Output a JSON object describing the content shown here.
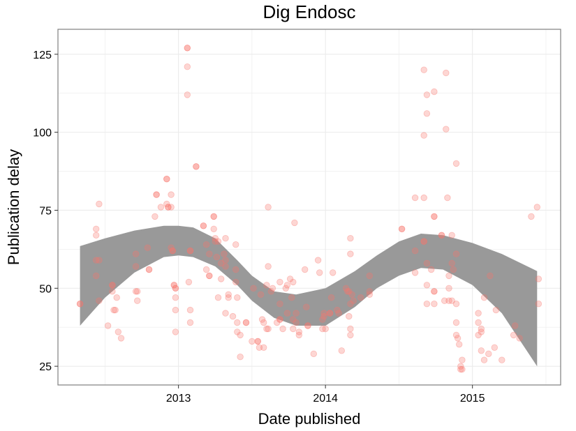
{
  "chart_data": {
    "type": "scatter",
    "title": "Dig Endosc",
    "xlabel": "Date published",
    "ylabel": "Publication delay",
    "xlim": [
      2012.18,
      2015.6
    ],
    "ylim": [
      19,
      133
    ],
    "x_ticks": [
      2013,
      2014,
      2015
    ],
    "x_tick_labels": [
      "2013",
      "2014",
      "2015"
    ],
    "x_minor_ticks": [
      2012.5,
      2013.5,
      2014.5,
      2015.5
    ],
    "y_ticks": [
      25,
      50,
      75,
      100,
      125
    ],
    "y_minor_ticks": [
      37.5,
      62.5,
      87.5,
      112.5
    ],
    "grid": true,
    "colors": {
      "points": "#f8766d",
      "band": "#999999",
      "grid": "#ebebeb",
      "border": "#7f7f7f"
    },
    "points": [
      [
        2012.33,
        45
      ],
      [
        2012.33,
        45
      ],
      [
        2012.44,
        69
      ],
      [
        2012.44,
        67
      ],
      [
        2012.44,
        59
      ],
      [
        2012.44,
        54
      ],
      [
        2012.46,
        59
      ],
      [
        2012.46,
        46
      ],
      [
        2012.46,
        77
      ],
      [
        2012.52,
        38
      ],
      [
        2012.55,
        51
      ],
      [
        2012.55,
        51
      ],
      [
        2012.55,
        49
      ],
      [
        2012.56,
        43
      ],
      [
        2012.57,
        43
      ],
      [
        2012.58,
        47
      ],
      [
        2012.59,
        36
      ],
      [
        2012.61,
        34
      ],
      [
        2012.71,
        57
      ],
      [
        2012.71,
        49
      ],
      [
        2012.72,
        46
      ],
      [
        2012.72,
        49
      ],
      [
        2012.71,
        61
      ],
      [
        2012.79,
        63
      ],
      [
        2012.8,
        56
      ],
      [
        2012.8,
        56
      ],
      [
        2012.84,
        73
      ],
      [
        2012.85,
        80
      ],
      [
        2012.85,
        80
      ],
      [
        2012.88,
        76
      ],
      [
        2012.92,
        85
      ],
      [
        2012.92,
        85
      ],
      [
        2012.92,
        77
      ],
      [
        2012.93,
        76
      ],
      [
        2012.93,
        76
      ],
      [
        2012.95,
        80
      ],
      [
        2012.95,
        76
      ],
      [
        2012.95,
        63
      ],
      [
        2012.96,
        62
      ],
      [
        2012.96,
        62
      ],
      [
        2012.97,
        51
      ],
      [
        2012.97,
        51
      ],
      [
        2012.98,
        50
      ],
      [
        2012.98,
        50
      ],
      [
        2012.98,
        47
      ],
      [
        2012.98,
        43
      ],
      [
        2012.98,
        36
      ],
      [
        2013.06,
        127
      ],
      [
        2013.06,
        127
      ],
      [
        2013.06,
        121
      ],
      [
        2013.06,
        112
      ],
      [
        2013.07,
        52
      ],
      [
        2013.08,
        62
      ],
      [
        2013.08,
        62
      ],
      [
        2013.08,
        43
      ],
      [
        2013.08,
        39
      ],
      [
        2013.12,
        89
      ],
      [
        2013.12,
        89
      ],
      [
        2013.17,
        70
      ],
      [
        2013.17,
        70
      ],
      [
        2013.19,
        64
      ],
      [
        2013.19,
        56
      ],
      [
        2013.21,
        54
      ],
      [
        2013.21,
        54
      ],
      [
        2013.21,
        61
      ],
      [
        2013.24,
        73
      ],
      [
        2013.24,
        73
      ],
      [
        2013.24,
        69
      ],
      [
        2013.25,
        66
      ],
      [
        2013.25,
        65
      ],
      [
        2013.26,
        60
      ],
      [
        2013.27,
        65
      ],
      [
        2013.27,
        47
      ],
      [
        2013.29,
        58
      ],
      [
        2013.29,
        53
      ],
      [
        2013.31,
        61
      ],
      [
        2013.32,
        57
      ],
      [
        2013.32,
        66
      ],
      [
        2013.32,
        59
      ],
      [
        2013.32,
        42
      ],
      [
        2013.34,
        48
      ],
      [
        2013.34,
        47
      ],
      [
        2013.37,
        41
      ],
      [
        2013.39,
        64
      ],
      [
        2013.39,
        56
      ],
      [
        2013.39,
        52
      ],
      [
        2013.4,
        47
      ],
      [
        2013.4,
        39
      ],
      [
        2013.4,
        36
      ],
      [
        2013.42,
        28
      ],
      [
        2013.42,
        35
      ],
      [
        2013.46,
        39
      ],
      [
        2013.46,
        39
      ],
      [
        2013.5,
        33
      ],
      [
        2013.51,
        50
      ],
      [
        2013.54,
        33
      ],
      [
        2013.54,
        33
      ],
      [
        2013.55,
        31
      ],
      [
        2013.56,
        48
      ],
      [
        2013.57,
        40
      ],
      [
        2013.58,
        39
      ],
      [
        2013.58,
        31
      ],
      [
        2013.6,
        37
      ],
      [
        2013.6,
        51
      ],
      [
        2013.61,
        76
      ],
      [
        2013.61,
        57
      ],
      [
        2013.61,
        37
      ],
      [
        2013.63,
        49
      ],
      [
        2013.64,
        50
      ],
      [
        2013.67,
        39
      ],
      [
        2013.69,
        40
      ],
      [
        2013.69,
        40
      ],
      [
        2013.69,
        52
      ],
      [
        2013.69,
        45
      ],
      [
        2013.71,
        37
      ],
      [
        2013.73,
        50
      ],
      [
        2013.74,
        42
      ],
      [
        2013.74,
        51
      ],
      [
        2013.76,
        53
      ],
      [
        2013.77,
        47
      ],
      [
        2013.78,
        40
      ],
      [
        2013.78,
        37
      ],
      [
        2013.78,
        52
      ],
      [
        2013.79,
        71
      ],
      [
        2013.8,
        42
      ],
      [
        2013.8,
        39
      ],
      [
        2013.82,
        36
      ],
      [
        2013.82,
        35
      ],
      [
        2013.86,
        56
      ],
      [
        2013.87,
        44
      ],
      [
        2013.88,
        38
      ],
      [
        2013.88,
        38
      ],
      [
        2013.92,
        29
      ],
      [
        2013.95,
        59
      ],
      [
        2013.96,
        55
      ],
      [
        2013.98,
        40
      ],
      [
        2013.98,
        37
      ],
      [
        2013.99,
        41
      ],
      [
        2013.99,
        42
      ],
      [
        2014.0,
        37
      ],
      [
        2014.03,
        42
      ],
      [
        2014.03,
        42
      ],
      [
        2014.04,
        47
      ],
      [
        2014.05,
        55
      ],
      [
        2014.08,
        43
      ],
      [
        2014.09,
        42
      ],
      [
        2014.11,
        30
      ],
      [
        2014.14,
        50
      ],
      [
        2014.15,
        49
      ],
      [
        2014.16,
        49
      ],
      [
        2014.16,
        41
      ],
      [
        2014.17,
        66
      ],
      [
        2014.17,
        61
      ],
      [
        2014.17,
        45
      ],
      [
        2014.17,
        37
      ],
      [
        2014.17,
        35
      ],
      [
        2014.18,
        48
      ],
      [
        2014.19,
        46
      ],
      [
        2014.24,
        47
      ],
      [
        2014.3,
        48
      ],
      [
        2014.3,
        54
      ],
      [
        2014.3,
        49
      ],
      [
        2014.52,
        69
      ],
      [
        2014.52,
        69
      ],
      [
        2014.61,
        79
      ],
      [
        2014.61,
        62
      ],
      [
        2014.61,
        55
      ],
      [
        2014.67,
        79
      ],
      [
        2014.67,
        65
      ],
      [
        2014.67,
        65
      ],
      [
        2014.67,
        99
      ],
      [
        2014.67,
        120
      ],
      [
        2014.69,
        112
      ],
      [
        2014.69,
        106
      ],
      [
        2014.69,
        58
      ],
      [
        2014.69,
        51
      ],
      [
        2014.69,
        45
      ],
      [
        2014.72,
        56
      ],
      [
        2014.74,
        113
      ],
      [
        2014.74,
        73
      ],
      [
        2014.74,
        73
      ],
      [
        2014.74,
        49
      ],
      [
        2014.74,
        49
      ],
      [
        2014.74,
        45
      ],
      [
        2014.79,
        67
      ],
      [
        2014.79,
        67
      ],
      [
        2014.81,
        46
      ],
      [
        2014.82,
        119
      ],
      [
        2014.82,
        101
      ],
      [
        2014.83,
        79
      ],
      [
        2014.84,
        54
      ],
      [
        2014.84,
        50
      ],
      [
        2014.84,
        46
      ],
      [
        2014.86,
        67
      ],
      [
        2014.86,
        58
      ],
      [
        2014.86,
        46
      ],
      [
        2014.87,
        56
      ],
      [
        2014.89,
        90
      ],
      [
        2014.89,
        61
      ],
      [
        2014.89,
        45
      ],
      [
        2014.89,
        39
      ],
      [
        2014.89,
        35
      ],
      [
        2014.9,
        34
      ],
      [
        2014.91,
        32
      ],
      [
        2014.92,
        25
      ],
      [
        2014.92,
        24
      ],
      [
        2014.93,
        27
      ],
      [
        2014.93,
        24
      ],
      [
        2015.04,
        42
      ],
      [
        2015.04,
        35
      ],
      [
        2015.04,
        39
      ],
      [
        2015.06,
        37
      ],
      [
        2015.06,
        36
      ],
      [
        2015.06,
        30
      ],
      [
        2015.08,
        47
      ],
      [
        2015.08,
        27
      ],
      [
        2015.11,
        29
      ],
      [
        2015.12,
        54
      ],
      [
        2015.15,
        31
      ],
      [
        2015.16,
        43
      ],
      [
        2015.2,
        27
      ],
      [
        2015.28,
        35
      ],
      [
        2015.29,
        38
      ],
      [
        2015.32,
        34
      ],
      [
        2015.4,
        73
      ],
      [
        2015.44,
        76
      ],
      [
        2015.45,
        53
      ],
      [
        2015.45,
        45
      ]
    ],
    "smooth_band": {
      "x": [
        2012.33,
        2012.5,
        2012.7,
        2012.9,
        2013.0,
        2013.1,
        2013.25,
        2013.4,
        2013.5,
        2013.65,
        2013.8,
        2014.0,
        2014.2,
        2014.35,
        2014.5,
        2014.65,
        2014.8,
        2015.0,
        2015.2,
        2015.44
      ],
      "upper": [
        63.5,
        66,
        68.5,
        70,
        70,
        69.5,
        66,
        59,
        54,
        49,
        48,
        50,
        55.5,
        60.5,
        65,
        67.5,
        67,
        64.5,
        61,
        55.5
      ],
      "lower": [
        38,
        47,
        55,
        60,
        60.5,
        60,
        57,
        51,
        46,
        40.5,
        38,
        38,
        44,
        50,
        54,
        56.5,
        56,
        51,
        42,
        25
      ]
    }
  }
}
